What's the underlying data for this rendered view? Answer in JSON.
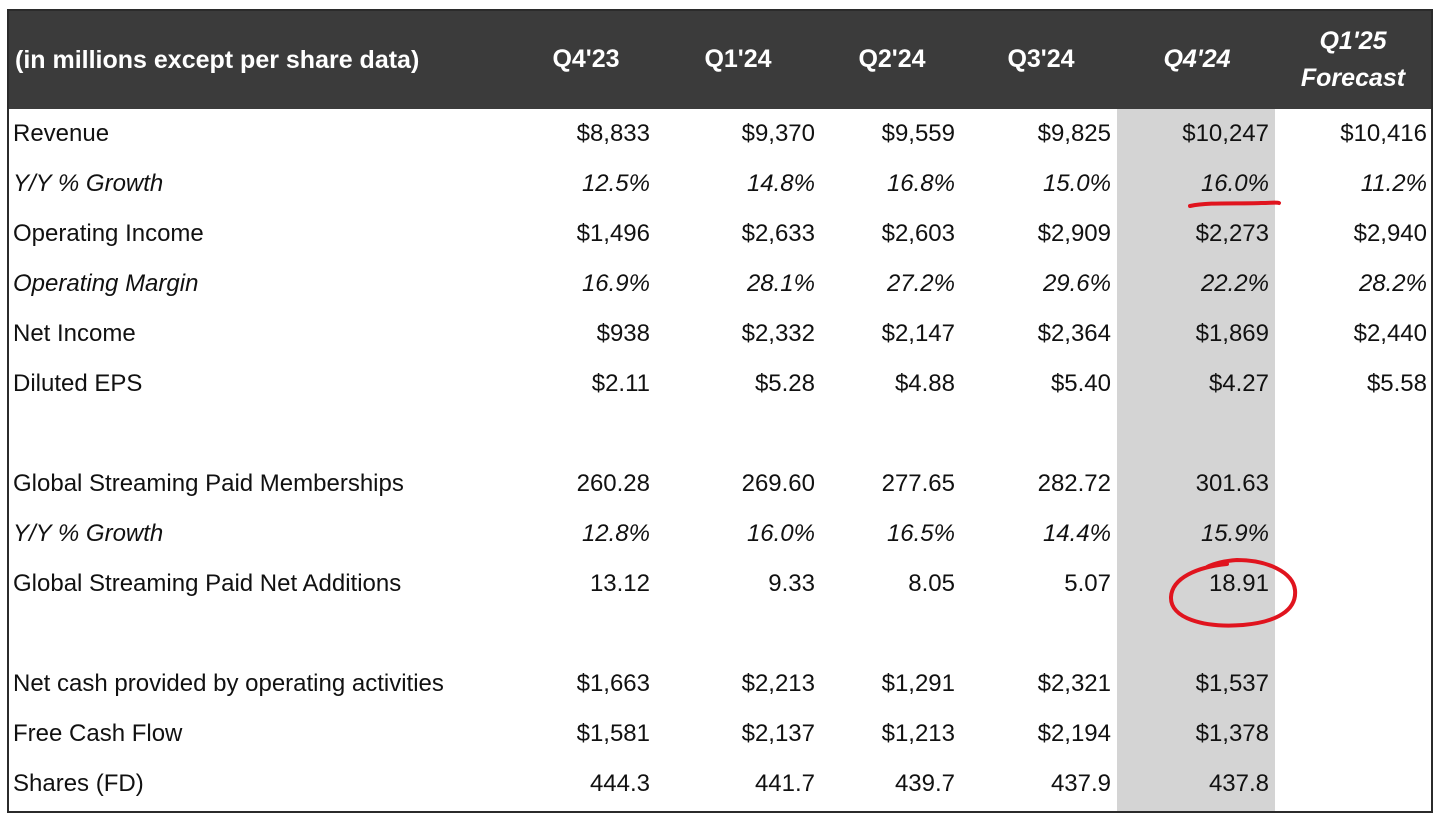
{
  "table": {
    "corner_label": "(in millions except per share data)",
    "columns": [
      {
        "line1": "Q4'23",
        "line2": ""
      },
      {
        "line1": "Q1'24",
        "line2": ""
      },
      {
        "line1": "Q2'24",
        "line2": ""
      },
      {
        "line1": "Q3'24",
        "line2": ""
      },
      {
        "line1": "Q4'24",
        "line2": ""
      },
      {
        "line1": "Q1'25",
        "line2": "Forecast"
      }
    ],
    "rows": [
      {
        "label": "Revenue",
        "italic": false,
        "values": [
          "$8,833",
          "$9,370",
          "$9,559",
          "$9,825",
          "$10,247",
          "$10,416"
        ]
      },
      {
        "label": "Y/Y % Growth",
        "italic": true,
        "values": [
          "12.5%",
          "14.8%",
          "16.8%",
          "15.0%",
          "16.0%",
          "11.2%"
        ]
      },
      {
        "label": "Operating Income",
        "italic": false,
        "values": [
          "$1,496",
          "$2,633",
          "$2,603",
          "$2,909",
          "$2,273",
          "$2,940"
        ]
      },
      {
        "label": "Operating Margin",
        "italic": true,
        "values": [
          "16.9%",
          "28.1%",
          "27.2%",
          "29.6%",
          "22.2%",
          "28.2%"
        ]
      },
      {
        "label": "Net Income",
        "italic": false,
        "values": [
          "$938",
          "$2,332",
          "$2,147",
          "$2,364",
          "$1,869",
          "$2,440"
        ]
      },
      {
        "label": "Diluted EPS",
        "italic": false,
        "values": [
          "$2.11",
          "$5.28",
          "$4.88",
          "$5.40",
          "$4.27",
          "$5.58"
        ]
      },
      {
        "label": "",
        "italic": false,
        "values": [
          "",
          "",
          "",
          "",
          "",
          ""
        ]
      },
      {
        "label": "Global Streaming Paid Memberships",
        "italic": false,
        "values": [
          "260.28",
          "269.60",
          "277.65",
          "282.72",
          "301.63",
          ""
        ]
      },
      {
        "label": "Y/Y % Growth",
        "italic": true,
        "values": [
          "12.8%",
          "16.0%",
          "16.5%",
          "14.4%",
          "15.9%",
          ""
        ]
      },
      {
        "label": "Global Streaming Paid Net Additions",
        "italic": false,
        "values": [
          "13.12",
          "9.33",
          "8.05",
          "5.07",
          "18.91",
          ""
        ]
      },
      {
        "label": "",
        "italic": false,
        "values": [
          "",
          "",
          "",
          "",
          "",
          ""
        ]
      },
      {
        "label": "Net cash provided by operating activities",
        "italic": false,
        "values": [
          "$1,663",
          "$2,213",
          "$1,291",
          "$2,321",
          "$1,537",
          ""
        ]
      },
      {
        "label": "Free Cash Flow",
        "italic": false,
        "values": [
          "$1,581",
          "$2,137",
          "$1,213",
          "$2,194",
          "$1,378",
          ""
        ]
      },
      {
        "label": "Shares (FD)",
        "italic": false,
        "values": [
          "444.3",
          "441.7",
          "439.7",
          "437.9",
          "437.8",
          ""
        ]
      }
    ]
  },
  "colors": {
    "header_bg": "#3b3b3b",
    "header_text": "#ffffff",
    "highlight_column": "#d4d4d4",
    "annotation": "#e0141e"
  }
}
